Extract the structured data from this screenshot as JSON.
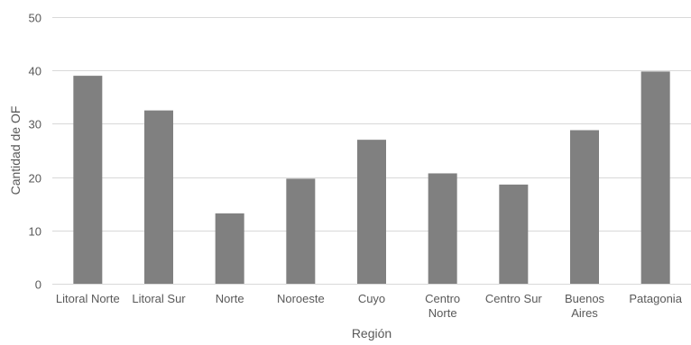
{
  "chart_data": {
    "type": "bar",
    "title": "",
    "xlabel": "Región",
    "ylabel": "Cantidad de OF",
    "categories": [
      [
        "Litoral Norte"
      ],
      [
        "Litoral Sur"
      ],
      [
        "Norte"
      ],
      [
        "Noroeste"
      ],
      [
        "Cuyo"
      ],
      [
        "Centro",
        "Norte"
      ],
      [
        "Centro Sur"
      ],
      [
        "Buenos",
        "Aires"
      ],
      [
        "Patagonia"
      ]
    ],
    "values": [
      39,
      32.5,
      13.2,
      19.7,
      27,
      20.7,
      18.6,
      28.8,
      39.8
    ],
    "ylim": [
      0,
      50
    ],
    "yticks": [
      0,
      10,
      20,
      30,
      40,
      50
    ],
    "grid": true,
    "bar_color": "#808080",
    "grid_color": "#d9d9d9",
    "axis_line_color": "#d9d9d9",
    "text_color": "#595959"
  }
}
